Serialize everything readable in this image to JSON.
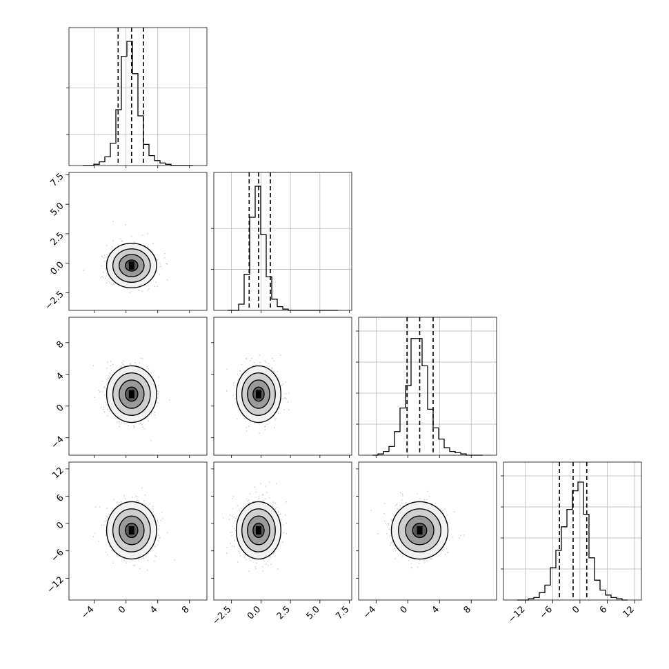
{
  "chart_data": {
    "type": "corner",
    "title": "",
    "parameters": [
      "",
      "",
      "",
      ""
    ],
    "ranges": [
      [
        -7.2,
        10.2
      ],
      [
        -4.0,
        7.7
      ],
      [
        -6.2,
        11.2
      ],
      [
        -16.8,
        13.5
      ]
    ],
    "ticks": [
      [
        -4,
        0,
        4,
        8
      ],
      [
        -2.5,
        0.0,
        2.5,
        5.0,
        7.5
      ],
      [
        -4,
        0,
        4,
        8
      ],
      [
        -12,
        -6,
        0,
        6,
        12
      ]
    ],
    "tick_labels": [
      [
        "−4",
        "0",
        "4",
        "8"
      ],
      [
        "−2.5",
        "0.0",
        "2.5",
        "5.0",
        "7.5"
      ],
      [
        "−4",
        "0",
        "4",
        "8"
      ],
      [
        "−12",
        "−6",
        "0",
        "6",
        "12"
      ]
    ],
    "quantiles_16_50_84": [
      [
        -1.0,
        0.7,
        2.2
      ],
      [
        -1.0,
        -0.2,
        0.8
      ],
      [
        -0.1,
        1.5,
        3.2
      ],
      [
        -4.5,
        -1.5,
        1.5
      ]
    ],
    "histograms": [
      [
        0.0,
        0.0,
        0.01,
        0.03,
        0.07,
        0.18,
        0.45,
        0.88,
        1.0,
        0.74,
        0.4,
        0.17,
        0.08,
        0.04,
        0.02,
        0.01,
        0.0,
        0.0,
        0.0,
        0.0
      ],
      [
        0.0,
        0.0,
        0.05,
        0.29,
        0.75,
        1.0,
        0.61,
        0.27,
        0.09,
        0.03,
        0.01,
        0.0,
        0.0,
        0.0,
        0.0,
        0.0,
        0.0,
        0.0,
        0.0,
        0.0
      ],
      [
        0.0,
        0.01,
        0.03,
        0.07,
        0.19,
        0.38,
        0.56,
        0.94,
        0.94,
        0.72,
        0.37,
        0.22,
        0.13,
        0.06,
        0.03,
        0.02,
        0.01,
        0.0,
        0.0,
        0.0
      ],
      [
        0.0,
        0.0,
        0.01,
        0.02,
        0.06,
        0.12,
        0.26,
        0.4,
        0.59,
        0.73,
        0.88,
        0.95,
        0.69,
        0.34,
        0.16,
        0.08,
        0.04,
        0.02,
        0.01,
        0.0
      ]
    ],
    "hist_y_ticks": [
      [
        0.25,
        0.625
      ],
      [
        0.33,
        0.66
      ],
      [
        0.25,
        0.5,
        0.75,
        1.0
      ],
      [
        0.25,
        0.5,
        0.75,
        1.0
      ]
    ],
    "pairs": [
      {
        "row": 1,
        "col": 0,
        "center": [
          0.7,
          -0.2
        ],
        "sigma": [
          1.5,
          0.9
        ]
      },
      {
        "row": 2,
        "col": 0,
        "center": [
          0.7,
          1.5
        ],
        "sigma": [
          1.5,
          1.7
        ]
      },
      {
        "row": 2,
        "col": 1,
        "center": [
          -0.2,
          1.5
        ],
        "sigma": [
          0.9,
          1.7
        ]
      },
      {
        "row": 3,
        "col": 0,
        "center": [
          0.7,
          -1.5
        ],
        "sigma": [
          1.5,
          3.0
        ]
      },
      {
        "row": 3,
        "col": 1,
        "center": [
          -0.2,
          -1.5
        ],
        "sigma": [
          0.9,
          3.0
        ]
      },
      {
        "row": 3,
        "col": 2,
        "center": [
          1.5,
          -1.5
        ],
        "sigma": [
          1.7,
          3.0
        ]
      }
    ],
    "contour_levels_sigma": [
      0.5,
      1.0,
      1.5,
      2.0
    ],
    "grid": true,
    "colors": {
      "line": "#000000",
      "points": "#bdbdbd",
      "grid": "#b0b0b0",
      "fill": "#4d4d4d"
    }
  }
}
